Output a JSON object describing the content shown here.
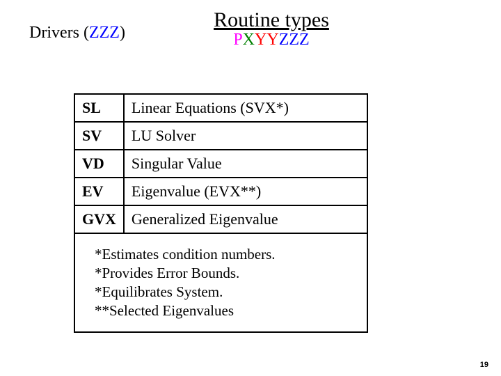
{
  "title": "Routine types",
  "subtitle_parts": {
    "p": "P",
    "x": "X",
    "yy": "YY",
    "zzz": "ZZZ"
  },
  "drivers_label_pre": "Drivers (",
  "drivers_label_zzz": "ZZZ",
  "drivers_label_post": ")",
  "rows": [
    {
      "code": "SL",
      "desc": "Linear Equations (SVX*)"
    },
    {
      "code": "SV",
      "desc": "LU Solver"
    },
    {
      "code": "VD",
      "desc": "Singular Value"
    },
    {
      "code": "EV",
      "desc": "Eigenvalue (EVX**)"
    },
    {
      "code": "GVX",
      "desc": "Generalized Eigenvalue"
    }
  ],
  "notes": [
    "  *Estimates condition numbers.",
    "  *Provides Error Bounds.",
    "  *Equilibrates System.",
    "**Selected Eigenvalues"
  ],
  "page_number": "19",
  "colors": {
    "magenta": "#ff00ff",
    "green": "#008000",
    "red": "#ff0000",
    "blue": "#0000ff",
    "black": "#000000"
  },
  "fontsizes": {
    "title": 30,
    "subtitle": 24,
    "drivers": 24,
    "table": 22,
    "notes": 21,
    "pagenum": 11
  }
}
